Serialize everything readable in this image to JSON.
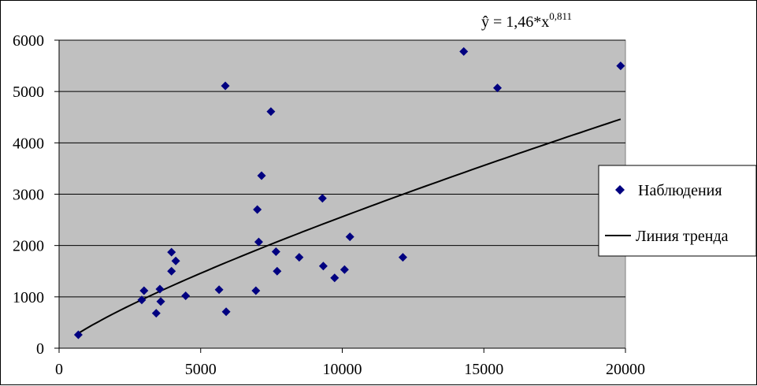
{
  "chart_data": {
    "type": "scatter",
    "title": "",
    "xlabel": "",
    "ylabel": "",
    "xlim": [
      0,
      20000
    ],
    "ylim": [
      0,
      6000
    ],
    "x_ticks": [
      0,
      5000,
      10000,
      15000,
      20000
    ],
    "y_ticks": [
      0,
      1000,
      2000,
      3000,
      4000,
      5000,
      6000
    ],
    "grid": "horizontal",
    "legend_position": "right",
    "colors": {
      "plot_background": "#c0c0c0",
      "marker": "#000080",
      "trend_line": "#000000",
      "gridline": "#000000"
    },
    "equation": {
      "base": "ŷ = 1,46*x",
      "exponent": "0,811"
    },
    "series": [
      {
        "name": "Наблюдения",
        "kind": "markers",
        "marker": "diamond",
        "points": [
          [
            680,
            260
          ],
          [
            2920,
            940
          ],
          [
            3000,
            1120
          ],
          [
            3430,
            680
          ],
          [
            3560,
            1150
          ],
          [
            3590,
            910
          ],
          [
            3970,
            1870
          ],
          [
            3970,
            1500
          ],
          [
            4120,
            1700
          ],
          [
            4470,
            1020
          ],
          [
            5650,
            1140
          ],
          [
            5870,
            5110
          ],
          [
            5900,
            710
          ],
          [
            6950,
            1120
          ],
          [
            7000,
            2700
          ],
          [
            7050,
            2070
          ],
          [
            7150,
            3360
          ],
          [
            7480,
            4610
          ],
          [
            7660,
            1880
          ],
          [
            7700,
            1500
          ],
          [
            8480,
            1770
          ],
          [
            9300,
            2920
          ],
          [
            9330,
            1600
          ],
          [
            9730,
            1370
          ],
          [
            10080,
            1530
          ],
          [
            10270,
            2170
          ],
          [
            12140,
            1770
          ],
          [
            14290,
            5780
          ],
          [
            15480,
            5070
          ],
          [
            19830,
            5500
          ]
        ]
      },
      {
        "name": "Линия тренда",
        "kind": "line",
        "model": {
          "a": 1.46,
          "b": 0.811
        },
        "x_range": [
          680,
          19830
        ]
      }
    ]
  }
}
